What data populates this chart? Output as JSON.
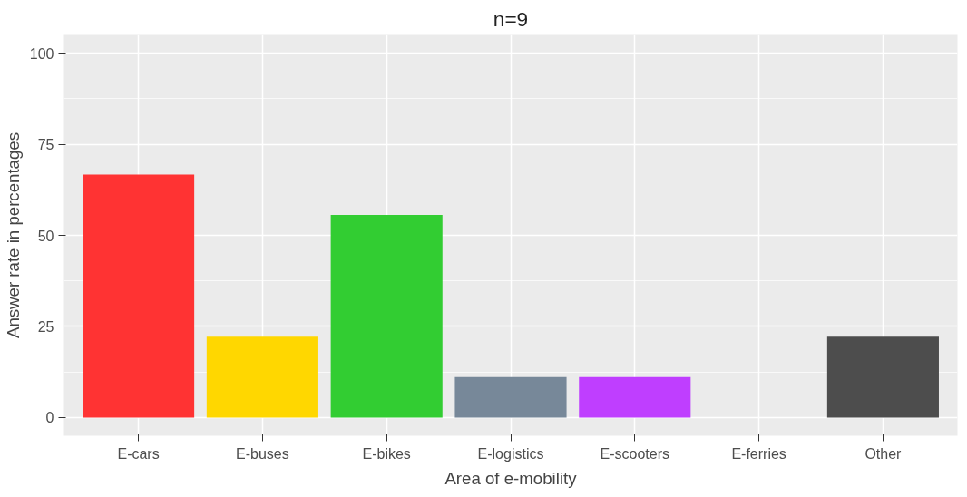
{
  "chart_data": {
    "type": "bar",
    "title": "n=9",
    "xlabel": "Area of e-mobility",
    "ylabel": "Answer rate in percentages",
    "categories": [
      "E-cars",
      "E-buses",
      "E-bikes",
      "E-logistics",
      "E-scooters",
      "E-ferries",
      "Other"
    ],
    "values": [
      66.7,
      22.2,
      55.6,
      11.1,
      11.1,
      0,
      22.2
    ],
    "colors": [
      "#ff3333",
      "#ffd700",
      "#32cd32",
      "#778899",
      "#bf3eff",
      "#ffffff",
      "#4d4d4d"
    ],
    "ylim": [
      -5,
      105
    ],
    "yticks": [
      0,
      25,
      50,
      75,
      100
    ],
    "grid": true
  }
}
